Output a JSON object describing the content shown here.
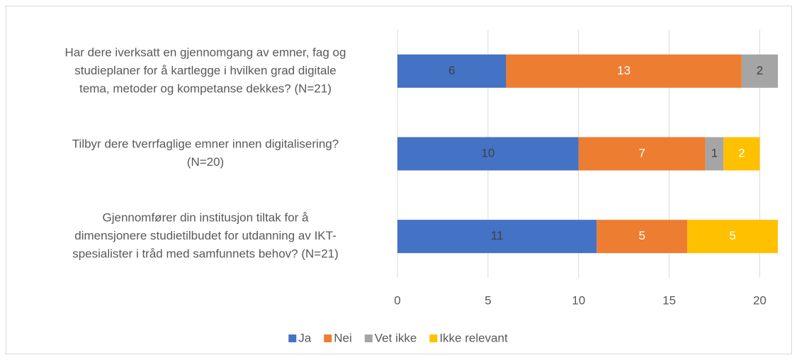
{
  "chart_data": {
    "type": "stacked_bar_horizontal",
    "categories": [
      [
        "Har dere iverksatt en gjennomgang av emner, fag og",
        "studieplaner for å kartlegge i hvilken grad digitale",
        "tema, metoder og kompetanse dekkes? (N=21)"
      ],
      [
        "Tilbyr dere tverrfaglige emner innen digitalisering?",
        "(N=20)"
      ],
      [
        "Gjennomfører din institusjon tiltak for å",
        "dimensjonere studietilbudet for utdanning av IKT-",
        "spesialister i tråd med samfunnets behov? (N=21)"
      ]
    ],
    "series": [
      {
        "name": "Ja",
        "color": "#4472c4",
        "values": [
          6,
          10,
          11
        ]
      },
      {
        "name": "Nei",
        "color": "#ed7d31",
        "values": [
          13,
          7,
          5
        ]
      },
      {
        "name": "Vet ikke",
        "color": "#a5a5a5",
        "values": [
          2,
          1,
          null
        ]
      },
      {
        "name": "Ikke relevant",
        "color": "#ffc000",
        "values": [
          null,
          2,
          5
        ]
      }
    ],
    "xlim": [
      0,
      21
    ],
    "xticks": [
      0,
      5,
      10,
      15,
      20
    ],
    "grid": true,
    "legend": "bottom"
  }
}
